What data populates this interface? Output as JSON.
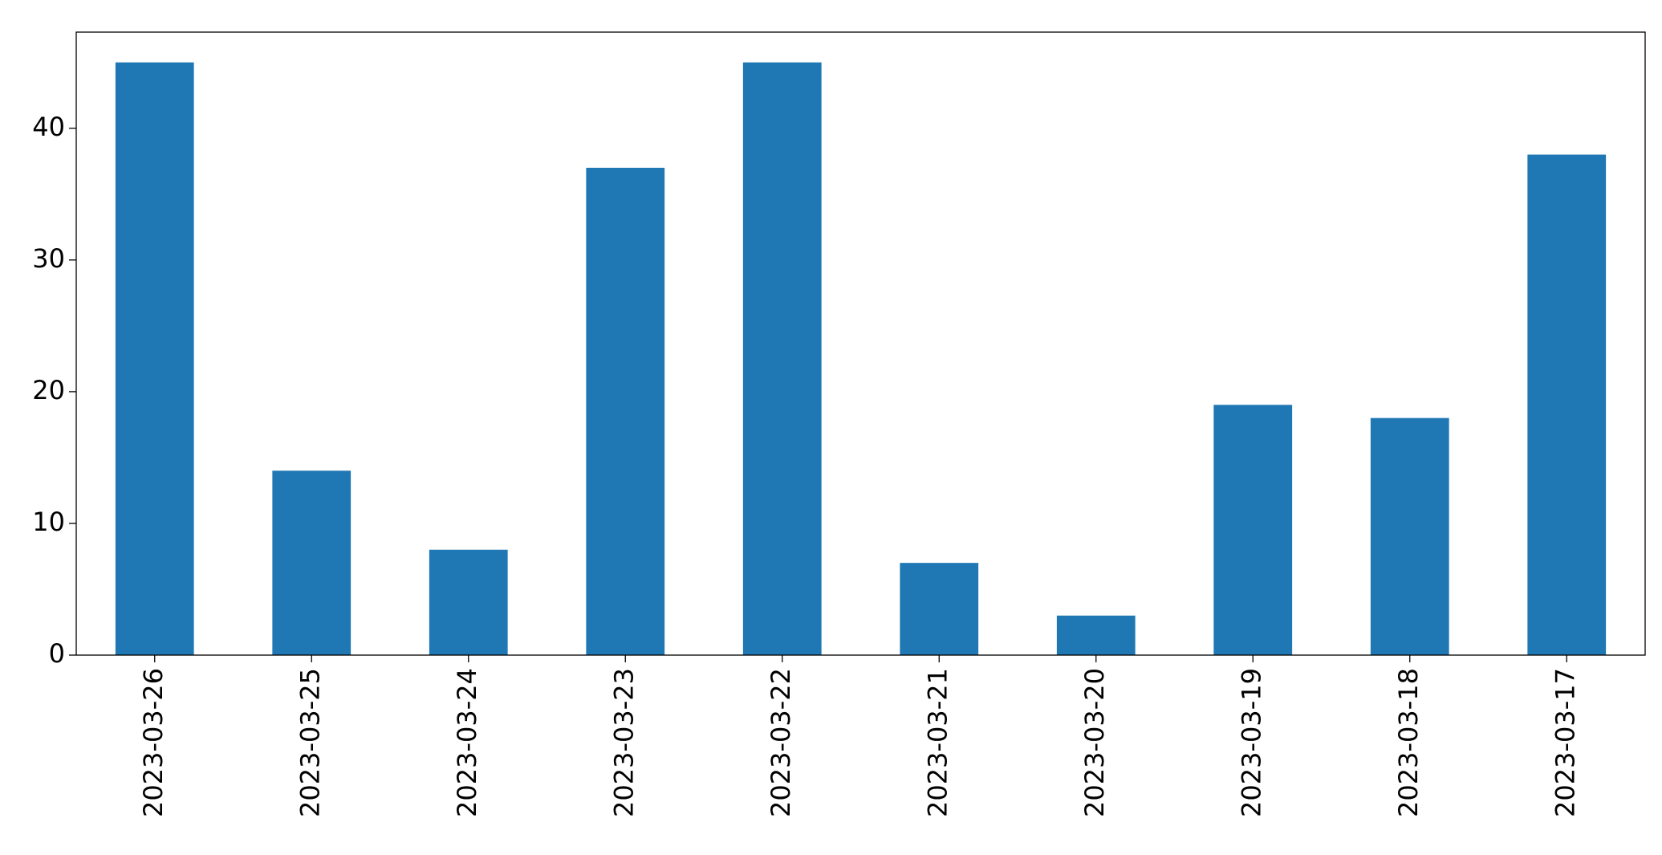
{
  "chart_data": {
    "type": "bar",
    "categories": [
      "2023-03-26",
      "2023-03-25",
      "2023-03-24",
      "2023-03-23",
      "2023-03-22",
      "2023-03-21",
      "2023-03-20",
      "2023-03-19",
      "2023-03-18",
      "2023-03-17"
    ],
    "values": [
      45,
      14,
      8,
      37,
      45,
      7,
      3,
      19,
      18,
      38
    ],
    "color": "#1f77b4",
    "ylim": [
      0,
      47.3
    ],
    "yticks": [
      0,
      10,
      20,
      30,
      40
    ],
    "grid": false
  }
}
